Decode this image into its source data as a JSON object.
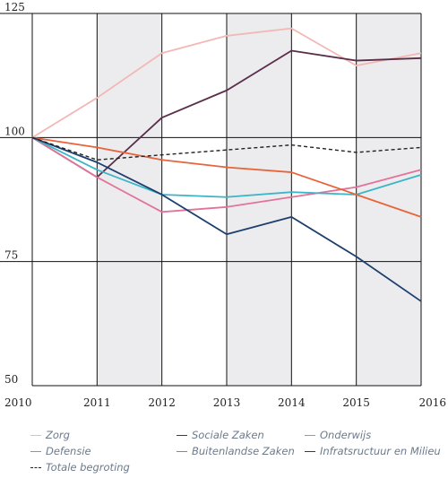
{
  "chart_data": {
    "type": "line",
    "x": [
      "2010",
      "2011",
      "2012",
      "2013",
      "2014",
      "2015",
      "2016"
    ],
    "ylim": [
      50,
      125
    ],
    "yticks": [
      "125",
      "100",
      "75",
      "50"
    ],
    "grid": true,
    "legend_position": "bottom",
    "series": [
      {
        "name": "Zorg",
        "color": "#f2b8b5",
        "dash": false,
        "values": [
          100,
          108,
          117,
          120.5,
          122,
          114.5,
          117
        ]
      },
      {
        "name": "Sociale Zaken",
        "color": "#5a2e4a",
        "dash": false,
        "values": [
          100,
          92,
          104,
          109.5,
          117.5,
          115.5,
          116
        ]
      },
      {
        "name": "Onderwijs",
        "color": "#e2739a",
        "dash": false,
        "values": [
          100,
          92,
          85,
          86,
          88,
          90,
          93.5
        ]
      },
      {
        "name": "Defensie",
        "color": "#3bb5c7",
        "dash": false,
        "values": [
          100,
          93.5,
          88.5,
          88,
          89,
          88.5,
          92.5
        ]
      },
      {
        "name": "Buitenlandse Zaken",
        "color": "#e8643a",
        "dash": false,
        "values": [
          100,
          98,
          95.5,
          94,
          93,
          88.5,
          84
        ]
      },
      {
        "name": "Infratsructuur en Milieu",
        "color": "#1d3f6e",
        "dash": false,
        "values": [
          100,
          95,
          88.5,
          80.5,
          84,
          76,
          67
        ]
      },
      {
        "name": "Totale begroting",
        "color": "#222222",
        "dash": true,
        "values": [
          100,
          95.5,
          96.5,
          97.5,
          98.5,
          97,
          98
        ]
      }
    ]
  }
}
